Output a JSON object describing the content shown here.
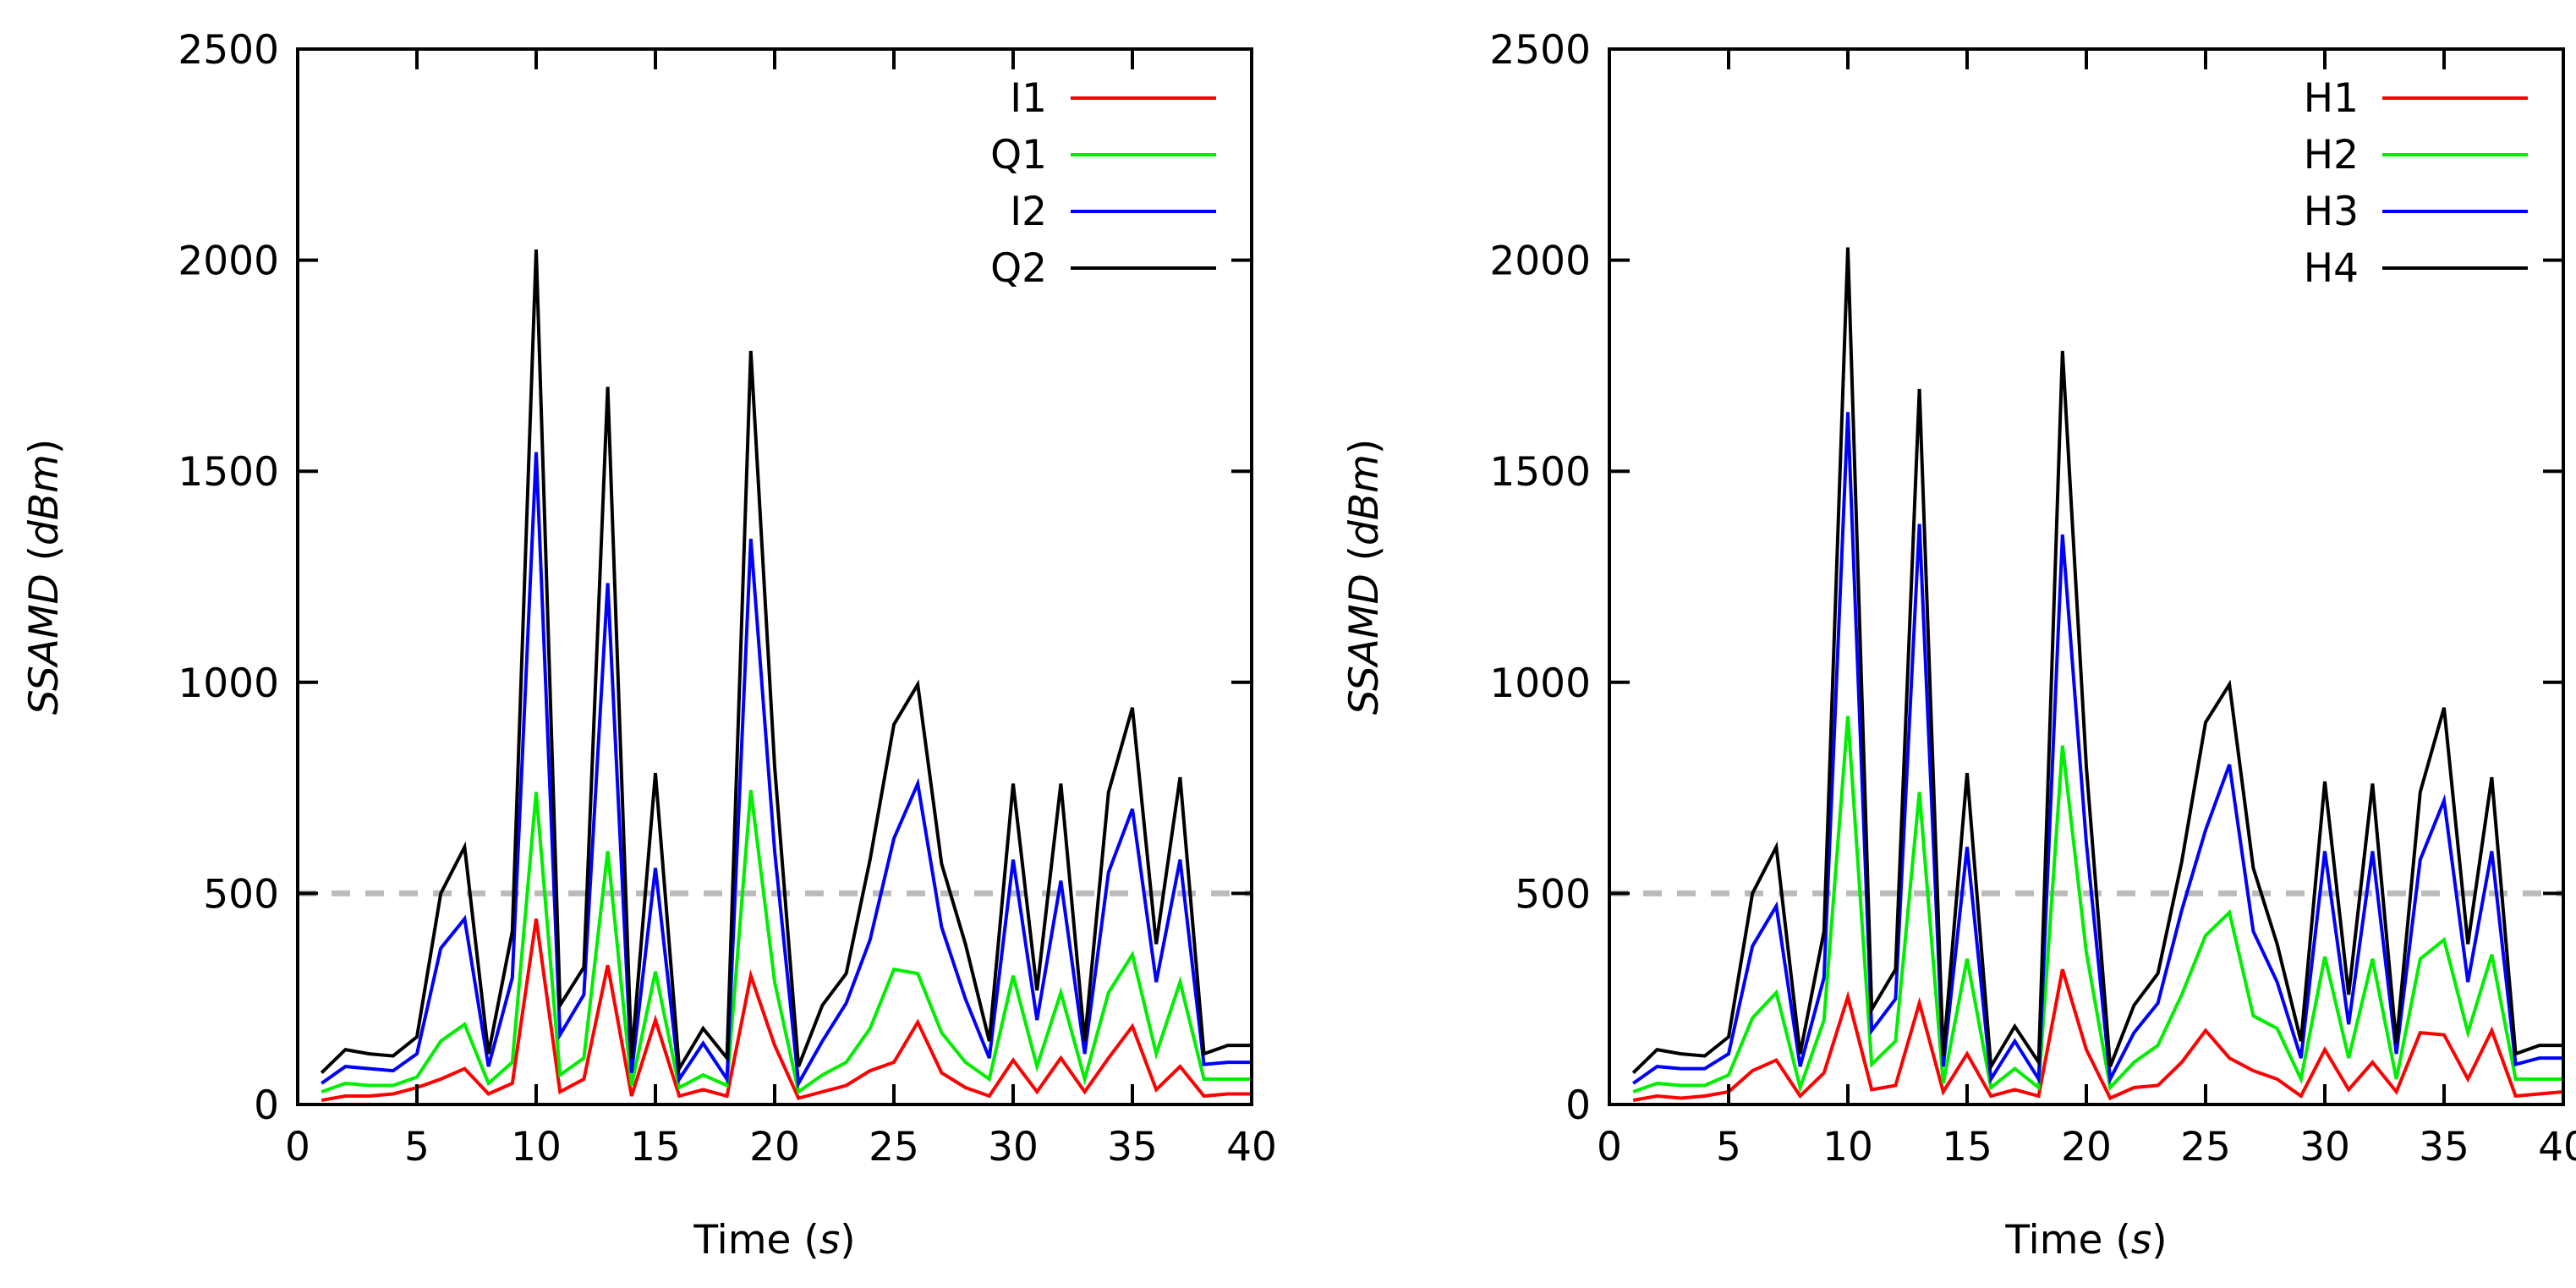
{
  "chart_data": [
    {
      "type": "line",
      "xlabel": "Time (s)",
      "xlabel_parts": [
        "Time (",
        "s",
        ")"
      ],
      "ylabel": "SSAMD (dBm)",
      "ylabel_parts": [
        "SSAMD",
        " (",
        "dBm",
        ")"
      ],
      "xlim": [
        0,
        40
      ],
      "ylim": [
        0,
        2500
      ],
      "xticks": [
        0,
        5,
        10,
        15,
        20,
        25,
        30,
        35,
        40
      ],
      "yticks": [
        0,
        500,
        1000,
        1500,
        2000,
        2500
      ],
      "threshold": {
        "y": 500,
        "style": "dashed",
        "color": "#bbbbbb"
      },
      "legend_position": "top-right",
      "x": [
        1,
        2,
        3,
        4,
        5,
        6,
        7,
        8,
        9,
        10,
        11,
        12,
        13,
        14,
        15,
        16,
        17,
        18,
        19,
        20,
        21,
        22,
        23,
        24,
        25,
        26,
        27,
        28,
        29,
        30,
        31,
        32,
        33,
        34,
        35,
        36,
        37,
        38,
        39,
        40
      ],
      "series": [
        {
          "name": "I1",
          "color": "#ff0000",
          "values": [
            10,
            20,
            20,
            25,
            40,
            60,
            85,
            25,
            50,
            440,
            30,
            60,
            330,
            20,
            200,
            20,
            35,
            20,
            305,
            140,
            15,
            30,
            45,
            80,
            100,
            195,
            75,
            40,
            20,
            105,
            30,
            110,
            30,
            110,
            185,
            35,
            90,
            20,
            25,
            25
          ]
        },
        {
          "name": "Q1",
          "color": "#00ee00",
          "values": [
            30,
            50,
            45,
            45,
            65,
            150,
            190,
            50,
            100,
            740,
            70,
            110,
            600,
            45,
            315,
            40,
            70,
            45,
            745,
            290,
            30,
            70,
            100,
            180,
            320,
            310,
            170,
            100,
            60,
            305,
            90,
            265,
            60,
            265,
            355,
            120,
            290,
            60,
            60,
            60
          ]
        },
        {
          "name": "I2",
          "color": "#0000ff",
          "values": [
            50,
            90,
            85,
            80,
            120,
            370,
            440,
            90,
            300,
            1545,
            165,
            260,
            1235,
            75,
            560,
            60,
            145,
            60,
            1340,
            600,
            50,
            150,
            240,
            390,
            630,
            760,
            420,
            250,
            110,
            580,
            200,
            530,
            120,
            550,
            700,
            290,
            580,
            95,
            100,
            100
          ]
        },
        {
          "name": "Q2",
          "color": "#000000",
          "values": [
            75,
            130,
            120,
            115,
            160,
            500,
            610,
            120,
            410,
            2025,
            235,
            325,
            1700,
            110,
            785,
            85,
            180,
            110,
            1785,
            800,
            90,
            235,
            310,
            580,
            900,
            995,
            570,
            380,
            150,
            760,
            270,
            760,
            150,
            740,
            940,
            380,
            775,
            120,
            140,
            140
          ]
        }
      ]
    },
    {
      "type": "line",
      "xlabel": "Time (s)",
      "xlabel_parts": [
        "Time (",
        "s",
        ")"
      ],
      "ylabel": "SSAMD (dBm)",
      "ylabel_parts": [
        "SSAMD",
        " (",
        "dBm",
        ")"
      ],
      "xlim": [
        0,
        40
      ],
      "ylim": [
        0,
        2500
      ],
      "xticks": [
        0,
        5,
        10,
        15,
        20,
        25,
        30,
        35,
        40
      ],
      "yticks": [
        0,
        500,
        1000,
        1500,
        2000,
        2500
      ],
      "threshold": {
        "y": 500,
        "style": "dashed",
        "color": "#bbbbbb"
      },
      "legend_position": "top-right",
      "x": [
        1,
        2,
        3,
        4,
        5,
        6,
        7,
        8,
        9,
        10,
        11,
        12,
        13,
        14,
        15,
        16,
        17,
        18,
        19,
        20,
        21,
        22,
        23,
        24,
        25,
        26,
        27,
        28,
        29,
        30,
        31,
        32,
        33,
        34,
        35,
        36,
        37,
        38,
        39,
        40
      ],
      "series": [
        {
          "name": "H1",
          "color": "#ff0000",
          "values": [
            10,
            20,
            15,
            20,
            30,
            80,
            105,
            20,
            75,
            255,
            35,
            45,
            240,
            30,
            120,
            20,
            35,
            20,
            320,
            130,
            15,
            40,
            45,
            100,
            175,
            110,
            80,
            60,
            20,
            130,
            35,
            100,
            30,
            170,
            165,
            60,
            175,
            20,
            25,
            30
          ]
        },
        {
          "name": "H2",
          "color": "#00ee00",
          "values": [
            30,
            50,
            45,
            45,
            70,
            205,
            265,
            40,
            200,
            920,
            95,
            150,
            740,
            50,
            345,
            40,
            85,
            40,
            850,
            360,
            40,
            100,
            140,
            260,
            400,
            455,
            210,
            180,
            60,
            350,
            110,
            345,
            60,
            345,
            390,
            170,
            355,
            60,
            60,
            60
          ]
        },
        {
          "name": "H3",
          "color": "#0000ff",
          "values": [
            50,
            90,
            85,
            85,
            120,
            375,
            470,
            90,
            300,
            1640,
            175,
            250,
            1375,
            90,
            610,
            60,
            150,
            60,
            1350,
            620,
            60,
            170,
            240,
            460,
            650,
            805,
            410,
            290,
            110,
            600,
            190,
            600,
            120,
            580,
            720,
            290,
            600,
            95,
            110,
            110
          ]
        },
        {
          "name": "H4",
          "color": "#000000",
          "values": [
            75,
            130,
            120,
            115,
            160,
            500,
            610,
            120,
            410,
            2030,
            225,
            320,
            1695,
            115,
            785,
            90,
            185,
            100,
            1785,
            800,
            90,
            235,
            310,
            575,
            905,
            995,
            560,
            380,
            150,
            765,
            260,
            760,
            145,
            740,
            940,
            380,
            775,
            120,
            140,
            140
          ]
        }
      ]
    }
  ]
}
